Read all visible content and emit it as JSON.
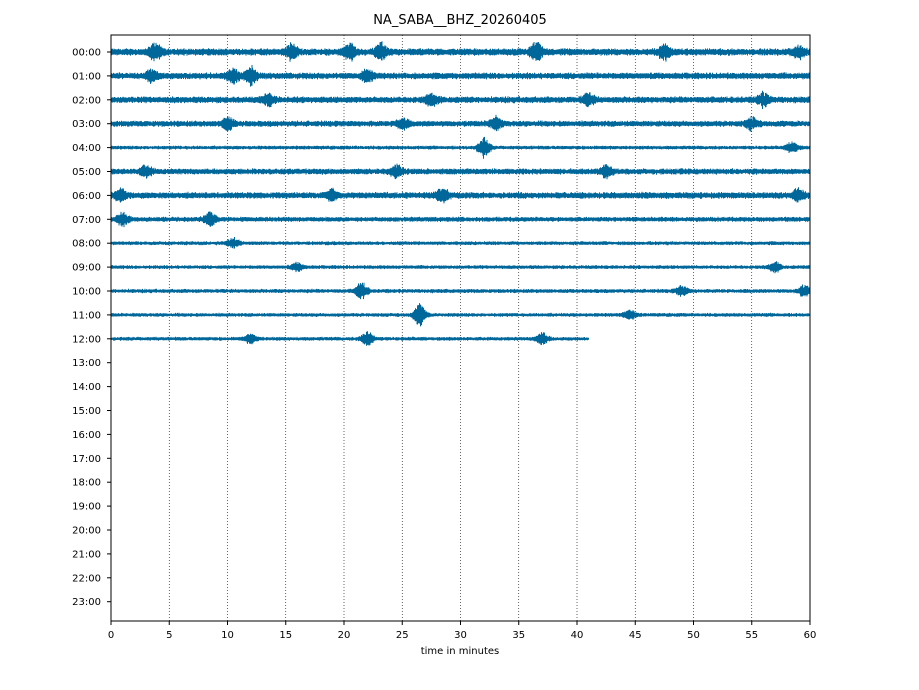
{
  "chart_data": {
    "type": "line",
    "title": "NA_SABA__BHZ_20260405",
    "xlabel": "time in minutes",
    "ylabel": "",
    "xlim": [
      0,
      60
    ],
    "x_ticks": [
      "0",
      "5",
      "10",
      "15",
      "20",
      "25",
      "30",
      "35",
      "40",
      "45",
      "50",
      "55",
      "60"
    ],
    "x_tick_values": [
      0,
      5,
      10,
      15,
      20,
      25,
      30,
      35,
      40,
      45,
      50,
      55,
      60
    ],
    "y_ticks": [
      "00:00",
      "01:00",
      "02:00",
      "03:00",
      "04:00",
      "05:00",
      "06:00",
      "07:00",
      "08:00",
      "09:00",
      "10:00",
      "11:00",
      "12:00",
      "13:00",
      "14:00",
      "15:00",
      "16:00",
      "17:00",
      "18:00",
      "19:00",
      "20:00",
      "21:00",
      "22:00",
      "23:00"
    ],
    "grid": "vertical dotted lines at x ticks",
    "trace_color": "#00679a",
    "traces": [
      {
        "hour": "00:00",
        "duration_min": 60,
        "amplitude": 0.26,
        "events": [
          [
            3.8,
            0.5
          ],
          [
            15.5,
            0.45
          ],
          [
            20.5,
            0.5
          ],
          [
            23.2,
            0.5
          ],
          [
            36.5,
            0.55
          ],
          [
            47.5,
            0.45
          ],
          [
            59.0,
            0.35
          ]
        ]
      },
      {
        "hour": "01:00",
        "duration_min": 60,
        "amplitude": 0.24,
        "events": [
          [
            3.5,
            0.4
          ],
          [
            10.5,
            0.45
          ],
          [
            12.0,
            0.55
          ],
          [
            22.0,
            0.35
          ]
        ]
      },
      {
        "hour": "02:00",
        "duration_min": 60,
        "amplitude": 0.24,
        "events": [
          [
            13.5,
            0.35
          ],
          [
            27.5,
            0.35
          ],
          [
            41.0,
            0.35
          ],
          [
            56.0,
            0.4
          ]
        ]
      },
      {
        "hour": "03:00",
        "duration_min": 60,
        "amplitude": 0.22,
        "events": [
          [
            10.0,
            0.4
          ],
          [
            25.0,
            0.35
          ],
          [
            33.0,
            0.4
          ],
          [
            55.0,
            0.35
          ]
        ]
      },
      {
        "hour": "04:00",
        "duration_min": 60,
        "amplitude": 0.14,
        "events": [
          [
            32.0,
            0.65
          ],
          [
            58.5,
            0.35
          ]
        ]
      },
      {
        "hour": "05:00",
        "duration_min": 60,
        "amplitude": 0.22,
        "events": [
          [
            3.0,
            0.35
          ],
          [
            24.5,
            0.35
          ],
          [
            42.5,
            0.35
          ]
        ]
      },
      {
        "hour": "06:00",
        "duration_min": 60,
        "amplitude": 0.24,
        "events": [
          [
            0.8,
            0.35
          ],
          [
            19.0,
            0.35
          ],
          [
            28.5,
            0.45
          ],
          [
            59.0,
            0.35
          ]
        ]
      },
      {
        "hour": "07:00",
        "duration_min": 60,
        "amplitude": 0.18,
        "events": [
          [
            1.0,
            0.45
          ],
          [
            8.5,
            0.45
          ]
        ]
      },
      {
        "hour": "08:00",
        "duration_min": 60,
        "amplitude": 0.14,
        "events": [
          [
            10.5,
            0.3
          ]
        ]
      },
      {
        "hour": "09:00",
        "duration_min": 60,
        "amplitude": 0.14,
        "events": [
          [
            16.0,
            0.25
          ],
          [
            57.0,
            0.3
          ]
        ]
      },
      {
        "hour": "10:00",
        "duration_min": 60,
        "amplitude": 0.15,
        "events": [
          [
            21.5,
            0.55
          ],
          [
            49.0,
            0.3
          ],
          [
            59.5,
            0.35
          ]
        ]
      },
      {
        "hour": "11:00",
        "duration_min": 60,
        "amplitude": 0.14,
        "events": [
          [
            26.5,
            0.7
          ],
          [
            44.5,
            0.3
          ]
        ]
      },
      {
        "hour": "12:00",
        "duration_min": 41,
        "amplitude": 0.14,
        "events": [
          [
            12.0,
            0.3
          ],
          [
            22.0,
            0.5
          ],
          [
            37.0,
            0.4
          ]
        ]
      }
    ]
  }
}
